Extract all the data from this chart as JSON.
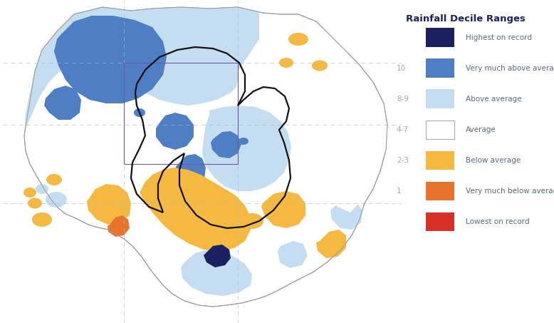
{
  "title": "Rainfall Decile Ranges",
  "legend_items": [
    {
      "label": "Highest on record",
      "color": "#1a2060",
      "decile": ""
    },
    {
      "label": "Very much above average",
      "color": "#4e7fc4",
      "decile": "10"
    },
    {
      "label": "Above average",
      "color": "#c5ddf0",
      "decile": "8-9"
    },
    {
      "label": "Average",
      "color": "#ffffff",
      "decile": "4-7"
    },
    {
      "label": "Below average",
      "color": "#f5b942",
      "decile": "2-3"
    },
    {
      "label": "Very much below average",
      "color": "#e8732a",
      "decile": "1"
    },
    {
      "label": "Lowest on record",
      "color": "#d73027",
      "decile": ""
    }
  ],
  "background_color": "#ffffff",
  "legend_title_color": "#1a2060",
  "legend_text_color": "#5a6a80",
  "decile_text_color": "#9aaabb",
  "grid_color": "#aabbcc",
  "basin_border_color": "#111111",
  "outer_border_color": "#999999",
  "purple_box_color": "#7755aa",
  "fig_width": 7.78,
  "fig_height": 4.53,
  "dpi": 100
}
